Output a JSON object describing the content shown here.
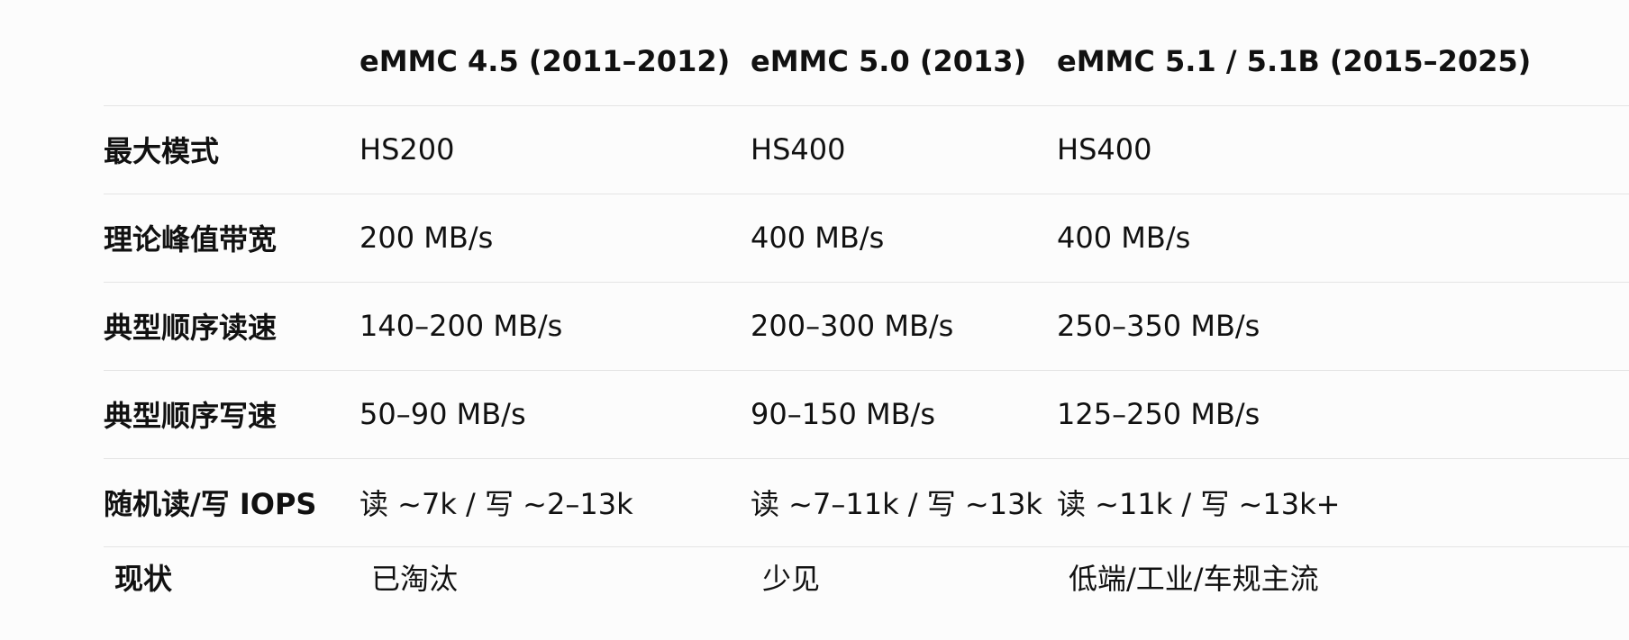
{
  "table": {
    "headers": [
      "",
      "eMMC 4.5 (2011–2012)",
      "eMMC 5.0 (2013)",
      "eMMC 5.1 / 5.1B (2015–2025)"
    ],
    "rows": [
      {
        "label": "最大模式",
        "cells": [
          "HS200",
          "HS400",
          "HS400"
        ]
      },
      {
        "label": "理论峰值带宽",
        "cells": [
          "200 MB/s",
          "400 MB/s",
          "400 MB/s"
        ]
      },
      {
        "label": "典型顺序读速",
        "cells": [
          "140–200 MB/s",
          "200–300 MB/s",
          "250–350 MB/s"
        ]
      },
      {
        "label": "典型顺序写速",
        "cells": [
          "50–90 MB/s",
          "90–150 MB/s",
          "125–250 MB/s"
        ]
      },
      {
        "label": "随机读/写 IOPS",
        "cells": [
          "读 ~7k / 写 ~2–13k",
          "读 ~7–11k / 写 ~13k",
          "读 ~11k / 写 ~13k+"
        ]
      },
      {
        "label": "现状",
        "cells": [
          "已淘汰",
          "少见",
          "低端/工业/车规主流"
        ]
      }
    ]
  }
}
